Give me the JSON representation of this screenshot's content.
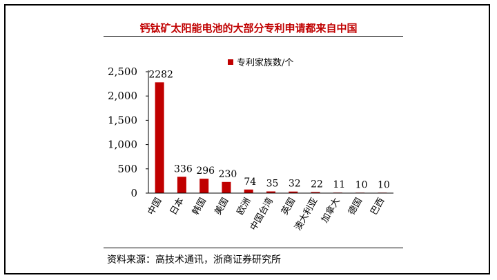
{
  "title": "钙钛矿太阳能电池的大部分专利申请都来自中国",
  "source": "资料来源：高技术通讯，浙商证券研究所",
  "chart_data": {
    "type": "bar",
    "categories": [
      "中国",
      "日本",
      "韩国",
      "美国",
      "欧洲",
      "中国台湾",
      "英国",
      "澳大利亚",
      "加拿大",
      "德国",
      "巴西"
    ],
    "series": [
      {
        "name": "专利家族数/个",
        "values": [
          2282,
          336,
          296,
          230,
          74,
          35,
          32,
          22,
          11,
          10,
          10
        ],
        "color": "#c00000"
      }
    ],
    "data_labels": [
      "2282",
      "336",
      "296",
      "230",
      "74",
      "35",
      "32",
      "22",
      "11",
      "10",
      "10"
    ],
    "y_ticks": [
      "0",
      "500",
      "1,000",
      "1,500",
      "2,000",
      "2,500"
    ],
    "y_tick_values": [
      0,
      500,
      1000,
      1500,
      2000,
      2500
    ],
    "ylim": [
      0,
      2500
    ],
    "legend_position": "top",
    "grid": false
  }
}
